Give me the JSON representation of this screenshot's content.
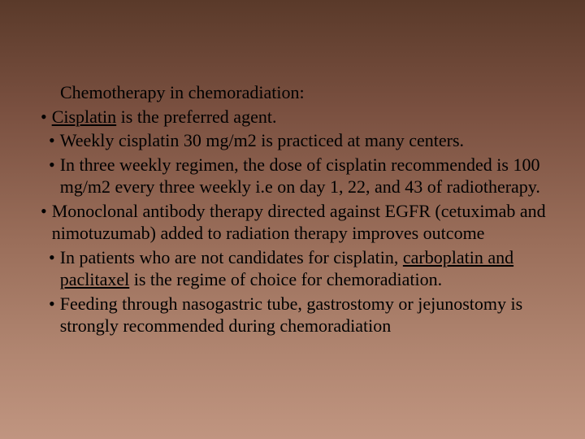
{
  "slide": {
    "background_gradient": [
      "#5a3a2a",
      "#7a5040",
      "#9a6e5a",
      "#b08570",
      "#c09580"
    ],
    "text_color": "#000000",
    "font_family": "Georgia, serif",
    "font_size_pt": 22,
    "heading": "Chemotherapy in chemoradiation:",
    "bullets": [
      {
        "indent": 1,
        "parts": [
          {
            "text": "Cisplatin",
            "underline": true
          },
          {
            "text": " is the preferred agent.",
            "underline": false
          }
        ]
      },
      {
        "indent": 2,
        "parts": [
          {
            "text": "Weekly cisplatin 30 mg/m2 is practiced at many centers.",
            "underline": false
          }
        ]
      },
      {
        "indent": 2,
        "parts": [
          {
            "text": "In three weekly regimen, the dose of cisplatin recommended is 100 mg/m2 every three weekly i.e on day 1, 22, and 43 of radiotherapy.",
            "underline": false
          }
        ]
      },
      {
        "indent": 1,
        "parts": [
          {
            "text": "Monoclonal antibody therapy directed against EGFR (cetuximab and nimotuzumab) added to radiation therapy improves outcome",
            "underline": false
          }
        ]
      },
      {
        "indent": 2,
        "parts": [
          {
            "text": "In patients who are not candidates for cisplatin, ",
            "underline": false
          },
          {
            "text": "carboplatin and paclitaxel",
            "underline": true
          },
          {
            "text": " is the regime of choice for chemoradiation.",
            "underline": false
          }
        ]
      },
      {
        "indent": 2,
        "parts": [
          {
            "text": "Feeding through nasogastric tube, gastrostomy or jejunostomy is strongly recommended during chemoradiation",
            "underline": false
          }
        ]
      }
    ]
  }
}
